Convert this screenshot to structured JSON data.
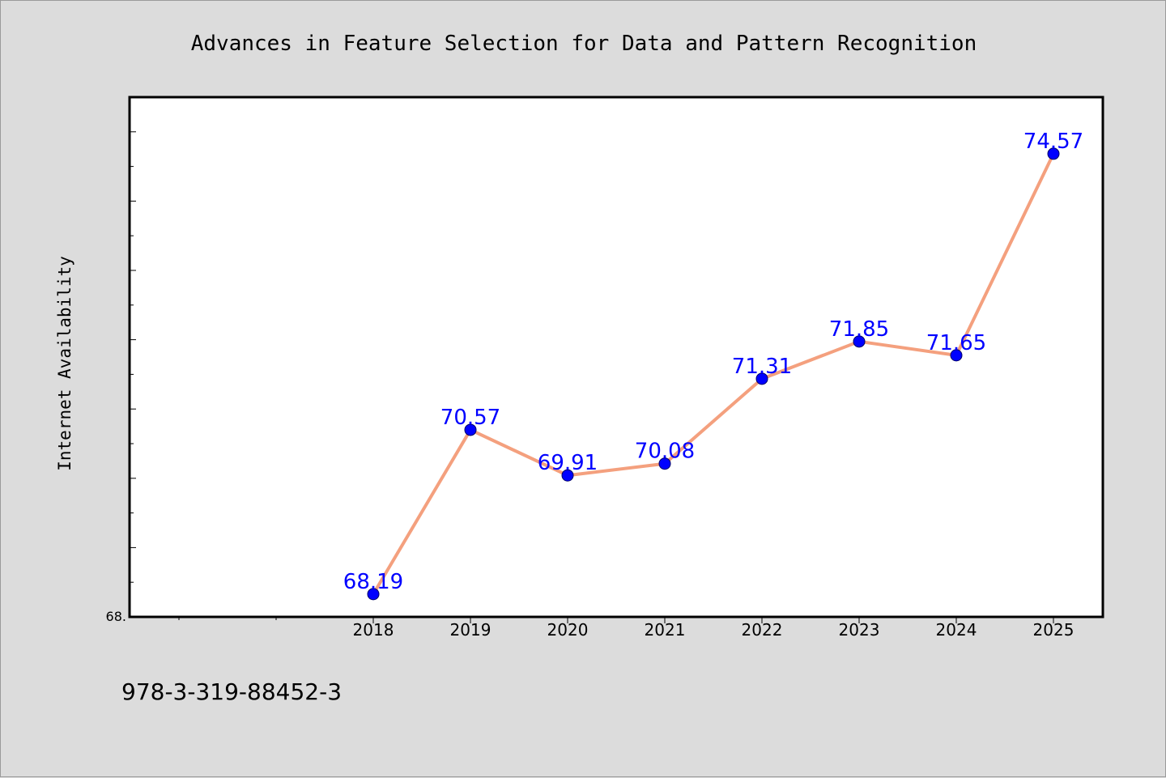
{
  "chart_data": {
    "type": "line",
    "title": "Advances in Feature Selection for Data and Pattern Recognition",
    "xlabel": "",
    "ylabel": "Internet Availability",
    "categories": [
      "2018",
      "2019",
      "2020",
      "2021",
      "2022",
      "2023",
      "2024",
      "2025"
    ],
    "values": [
      68.19,
      70.57,
      69.91,
      70.08,
      71.31,
      71.85,
      71.65,
      74.57
    ],
    "data_labels": [
      "68.19",
      "70.57",
      "69.91",
      "70.08",
      "71.31",
      "71.85",
      "71.65",
      "74.57"
    ],
    "ylim": [
      67.86,
      75.39
    ],
    "y_tick_label": "68.",
    "grid": false,
    "legend": "none",
    "colors": {
      "line": "#f4a07e",
      "marker": "#0000ff",
      "marker_edge": "#000066",
      "label": "#0000ff",
      "axes_bg": "#ffffff",
      "figure_bg": "#dcdcdc"
    }
  },
  "footer": {
    "isbn": "978-3-319-88452-3"
  }
}
